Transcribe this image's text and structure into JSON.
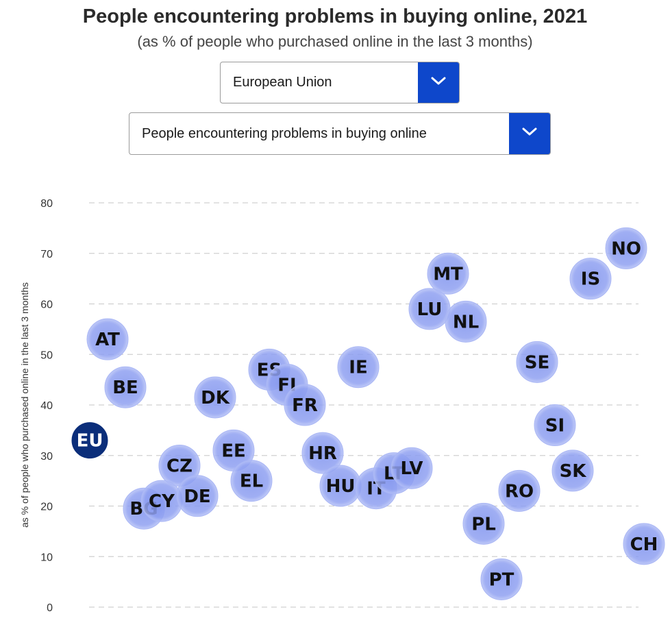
{
  "header": {
    "title": "People encountering problems in buying online, 2021",
    "subtitle": "(as % of people who purchased online in the last 3 months)"
  },
  "controls": {
    "geo_select": {
      "value": "European Union",
      "icon": "chevron-down-icon"
    },
    "indicator_select": {
      "value": "People encountering problems in buying online",
      "icon": "chevron-down-icon"
    }
  },
  "colors": {
    "bubble_fill": "#8a9cf0",
    "bubble_stroke": "#a9b6f5",
    "highlight": "#0b2e7a",
    "grid": "#d0d0d0",
    "button": "#0e47cb"
  },
  "chart_data": {
    "type": "scatter",
    "title": "People encountering problems in buying online, 2021",
    "subtitle": "(as % of people who purchased online in the last 3 months)",
    "xlabel": "",
    "ylabel": "as % of people who purchased online in the last 3 months",
    "ylim": [
      0,
      80
    ],
    "yticks": [
      0,
      10,
      20,
      30,
      40,
      50,
      60,
      70,
      80
    ],
    "grid": true,
    "highlight": "EU",
    "points": [
      {
        "label": "EU",
        "value": 33
      },
      {
        "label": "AT",
        "value": 53
      },
      {
        "label": "BE",
        "value": 43.5
      },
      {
        "label": "BG",
        "value": 19.5
      },
      {
        "label": "CY",
        "value": 21
      },
      {
        "label": "CZ",
        "value": 28
      },
      {
        "label": "DE",
        "value": 22
      },
      {
        "label": "DK",
        "value": 41.5
      },
      {
        "label": "EE",
        "value": 31
      },
      {
        "label": "EL",
        "value": 25
      },
      {
        "label": "ES",
        "value": 47
      },
      {
        "label": "FI",
        "value": 44
      },
      {
        "label": "FR",
        "value": 40
      },
      {
        "label": "HR",
        "value": 30.5
      },
      {
        "label": "HU",
        "value": 24
      },
      {
        "label": "IE",
        "value": 47.5
      },
      {
        "label": "IT",
        "value": 23.5
      },
      {
        "label": "LT",
        "value": 26.5
      },
      {
        "label": "LV",
        "value": 27.5
      },
      {
        "label": "LU",
        "value": 59
      },
      {
        "label": "MT",
        "value": 66
      },
      {
        "label": "NL",
        "value": 56.5
      },
      {
        "label": "PL",
        "value": 16.5
      },
      {
        "label": "PT",
        "value": 5.5
      },
      {
        "label": "RO",
        "value": 23
      },
      {
        "label": "SE",
        "value": 48.5
      },
      {
        "label": "SI",
        "value": 36
      },
      {
        "label": "SK",
        "value": 27
      },
      {
        "label": "IS",
        "value": 65
      },
      {
        "label": "NO",
        "value": 71
      },
      {
        "label": "CH",
        "value": 12.5
      }
    ]
  }
}
